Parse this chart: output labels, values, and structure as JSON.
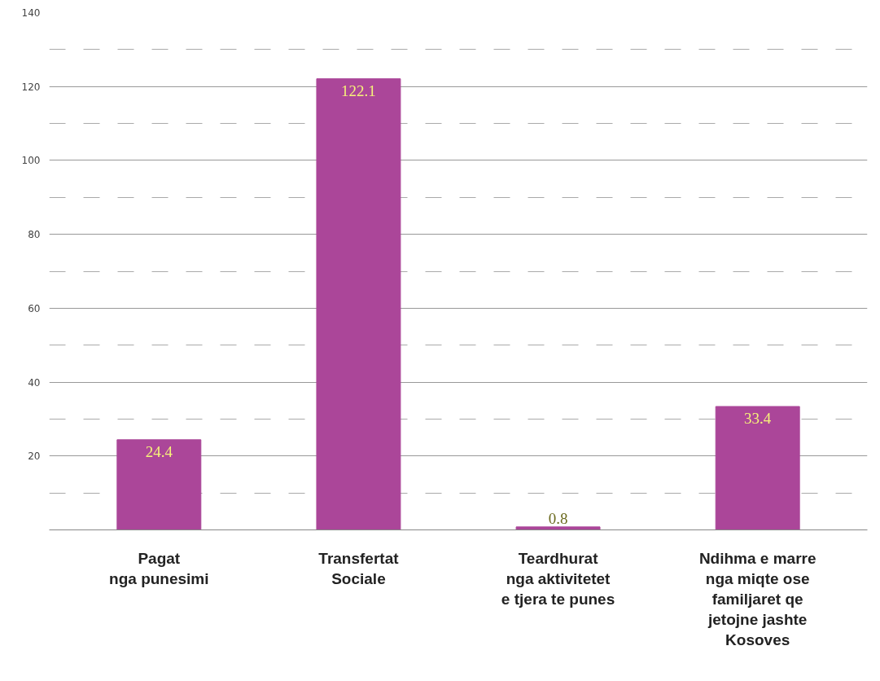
{
  "chart_data": {
    "type": "bar",
    "categories": [
      "Pagat\nnga punesimi",
      "Transfertat\nSociale",
      "Teardhurat\nnga aktivitetet\ne tjera te punes",
      "Ndihma e marre\nnga miqte ose\nfamiljaret qe\njetojne jashte\nKosoves"
    ],
    "values": [
      24.4,
      122.1,
      0.8,
      33.4
    ],
    "color": "#ab4699",
    "ylim": [
      0,
      140
    ],
    "yticks": [
      {
        "value": 0,
        "label": null
      },
      20,
      40,
      60,
      80,
      100,
      120,
      140
    ],
    "grid": "y",
    "data_labels": true
  }
}
